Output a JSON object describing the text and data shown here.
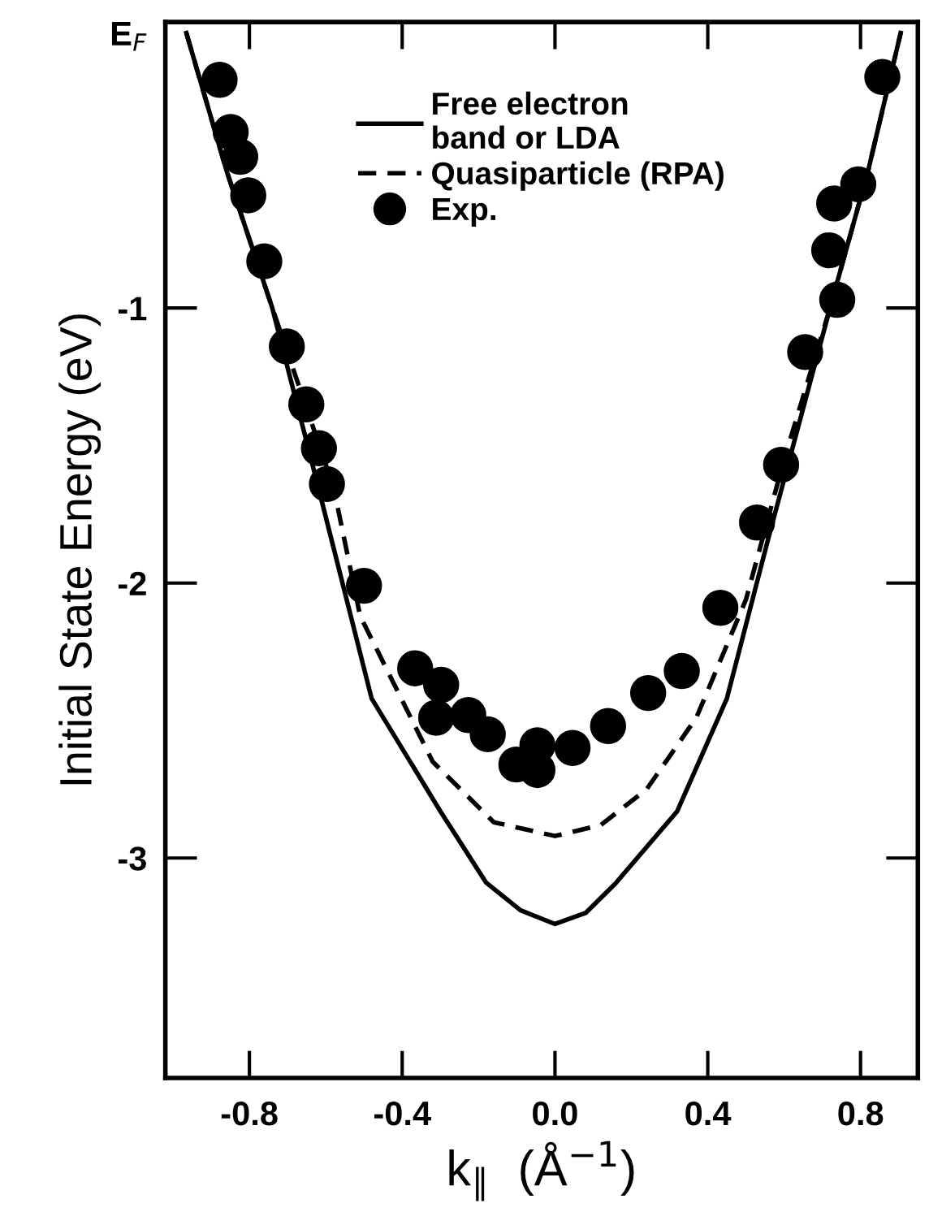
{
  "chart_data": {
    "type": "line",
    "xlabel": "k$_{∥}$  (Å$^{−1}$)",
    "ylabel": "Initial State Energy (eV)",
    "xlim": [
      -1.02,
      0.95
    ],
    "ylim": [
      -3.8,
      0.04
    ],
    "xticks": [
      {
        "value": -0.8,
        "label": "-0.8"
      },
      {
        "value": -0.4,
        "label": "-0.4"
      },
      {
        "value": 0,
        "label": "0.0"
      },
      {
        "value": 0.4,
        "label": "0.4"
      },
      {
        "value": 0.8,
        "label": "0.8"
      }
    ],
    "yticks": [
      {
        "value": 0,
        "label": "E$_{F}$"
      },
      {
        "value": -1,
        "label": "-1"
      },
      {
        "value": -2,
        "label": "-2"
      },
      {
        "value": -3,
        "label": "-3"
      }
    ],
    "grid": false,
    "legend": "top",
    "series": [
      {
        "name": "Free electron\nband or LDA",
        "line_style": "solid",
        "marker": "none",
        "color": "#000000",
        "x": [
          -0.965,
          -0.86,
          -0.74,
          -0.62,
          -0.48,
          -0.3,
          -0.18,
          -0.09,
          0,
          0.08,
          0.16,
          0.32,
          0.45,
          0.56,
          0.72,
          0.82,
          0.905
        ],
        "values": [
          0.0,
          -0.5,
          -1,
          -1.65,
          -2.42,
          -2.83,
          -3.09,
          -3.19,
          -3.24,
          -3.2,
          -3.09,
          -2.83,
          -2.42,
          -1.83,
          -1.0,
          -0.5,
          0.0
        ]
      },
      {
        "name": "Quasiparticle (RPA)",
        "type": "line",
        "line_style": "dashed",
        "marker": "none",
        "color": "#000000",
        "x": [
          -0.965,
          -0.86,
          -0.74,
          -0.58,
          -0.51,
          -0.32,
          -0.16,
          0,
          0.12,
          0.24,
          0.37,
          0.5,
          0.6,
          0.72,
          0.82,
          0.905
        ],
        "values": [
          0.0,
          -0.5,
          -1,
          -1.65,
          -2.12,
          -2.65,
          -2.87,
          -2.92,
          -2.88,
          -2.75,
          -2.49,
          -2.06,
          -1.55,
          -1.0,
          -0.5,
          0.0
        ]
      },
      {
        "name": "Exp.",
        "type": "scatter",
        "marker": "circle",
        "color": "#000000",
        "x": [
          -0.878,
          -0.849,
          -0.824,
          -0.803,
          -0.761,
          -0.702,
          -0.651,
          -0.618,
          -0.597,
          -0.5,
          -0.366,
          -0.298,
          -0.311,
          -0.227,
          -0.176,
          -0.101,
          -0.046,
          -0.046,
          0.046,
          0.139,
          0.244,
          0.332,
          0.433,
          0.529,
          0.592,
          0.655,
          0.739,
          0.718,
          0.731,
          0.794,
          0.857
        ],
        "values": [
          -0.17,
          -0.36,
          -0.45,
          -0.59,
          -0.83,
          -1.14,
          -1.35,
          -1.51,
          -1.64,
          -2.01,
          -2.31,
          -2.37,
          -2.49,
          -2.48,
          -2.55,
          -2.66,
          -2.59,
          -2.68,
          -2.6,
          -2.52,
          -2.4,
          -2.32,
          -2.09,
          -1.78,
          -1.57,
          -1.16,
          -0.97,
          -0.79,
          -0.62,
          -0.55,
          -0.16
        ]
      }
    ]
  }
}
